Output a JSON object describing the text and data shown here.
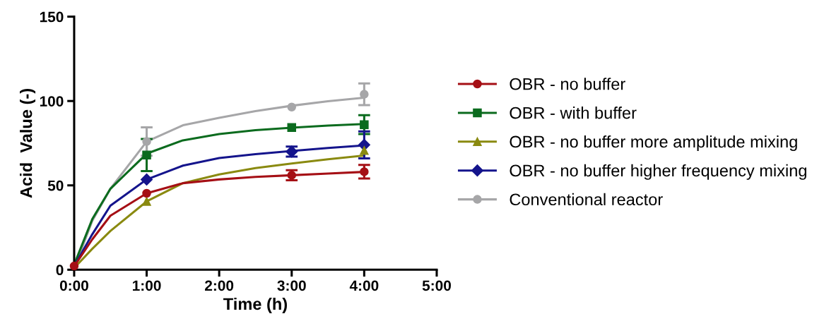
{
  "chart_data": {
    "type": "scatter",
    "xlabel": "Time (h)",
    "ylabel": "Acid  Value (-)",
    "x": [
      0,
      1,
      3,
      4
    ],
    "xlim": [
      0,
      5
    ],
    "xticks": [
      {
        "value": 0,
        "label": "0:00"
      },
      {
        "value": 1,
        "label": "1:00"
      },
      {
        "value": 2,
        "label": "2:00"
      },
      {
        "value": 3,
        "label": "3:00"
      },
      {
        "value": 4,
        "label": "4:00"
      },
      {
        "value": 5,
        "label": "5:00"
      }
    ],
    "ylim": [
      0,
      150
    ],
    "yticks": [
      0,
      50,
      100,
      150
    ],
    "grid": false,
    "legend": "right",
    "series": [
      {
        "type": "line",
        "color": "#a6a6a8",
        "x": [
          0,
          0.25,
          0.5,
          1,
          1.5,
          2,
          2.5,
          3,
          3.5,
          4
        ],
        "values": [
          0.5,
          29,
          48,
          76,
          85.6,
          90,
          94,
          97.2,
          99.9,
          102
        ]
      },
      {
        "type": "line",
        "color": "#0b6b1e",
        "x": [
          0,
          0.25,
          0.5,
          1,
          1.5,
          2,
          2.5,
          3,
          3.5,
          4
        ],
        "values": [
          3,
          30,
          48,
          68.8,
          76.7,
          80.4,
          82.7,
          84.2,
          85.4,
          86.4
        ]
      },
      {
        "type": "line",
        "color": "#14148c",
        "x": [
          0,
          0.25,
          0.5,
          1,
          1.5,
          2,
          2.5,
          3,
          3.5,
          4
        ],
        "values": [
          2,
          21,
          38,
          53.5,
          61.7,
          66.2,
          68.5,
          70.4,
          72.2,
          73.7
        ]
      },
      {
        "type": "line",
        "color": "#8a8a10",
        "x": [
          0,
          0.25,
          0.5,
          1,
          1.5,
          2,
          2.5,
          3,
          3.5,
          4
        ],
        "values": [
          1,
          12.4,
          23,
          40.5,
          51.3,
          56.5,
          60.2,
          63,
          65.5,
          67.7
        ]
      },
      {
        "type": "line",
        "color": "#a50f15",
        "x": [
          0,
          0.25,
          0.5,
          1,
          1.5,
          2,
          2.5,
          3,
          3.5,
          4
        ],
        "values": [
          2,
          18,
          32,
          45.3,
          51.3,
          53.5,
          55,
          56,
          57,
          58
        ]
      },
      {
        "name": "OBR - no buffer",
        "color": "#a50f15",
        "marker": "circle",
        "values": [
          2.2,
          45.3,
          56,
          58.1
        ],
        "errors": [
          null,
          null,
          3,
          4
        ]
      },
      {
        "name": "OBR - with buffer",
        "color": "#0b6b1e",
        "marker": "square",
        "values": [
          null,
          68,
          84.3,
          86
        ],
        "errors": [
          null,
          9.5,
          null,
          5.6
        ]
      },
      {
        "name": "OBR - no buffer more amplitude mixing",
        "color": "#8a8a10",
        "marker": "triangle",
        "x": [
          1,
          4
        ],
        "values": [
          40.5,
          70.7
        ]
      },
      {
        "name": "OBR - no buffer higher frequency mixing",
        "color": "#14148c",
        "marker": "diamond",
        "values": [
          null,
          53.5,
          70,
          74
        ],
        "errors": [
          null,
          null,
          3,
          8
        ]
      },
      {
        "name": "Conventional reactor",
        "color": "#a6a6a8",
        "marker": "circle",
        "values": [
          null,
          76,
          96.4,
          104
        ],
        "errors": [
          null,
          8.4,
          null,
          6.4
        ]
      }
    ]
  }
}
